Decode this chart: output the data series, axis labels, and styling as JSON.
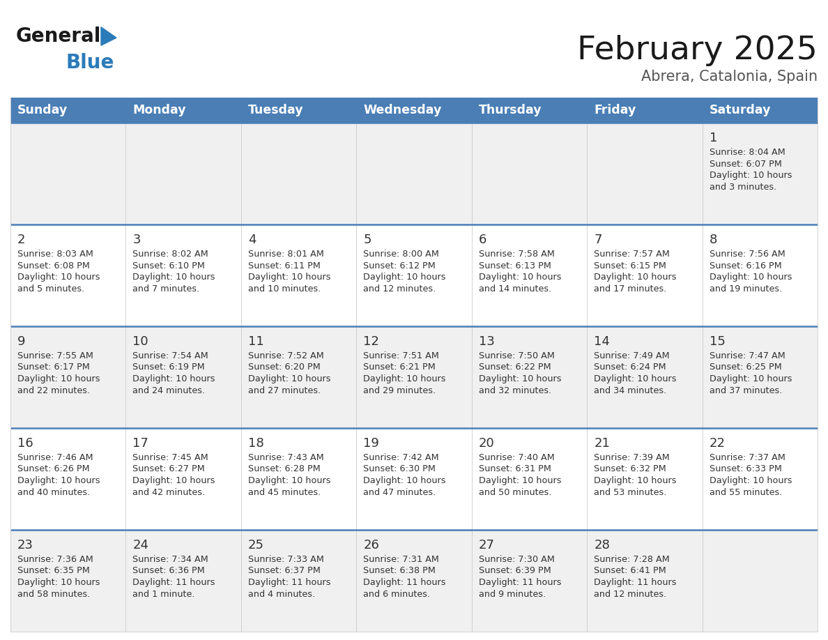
{
  "title": "February 2025",
  "subtitle": "Abrera, Catalonia, Spain",
  "header_bg": "#4a7eb5",
  "header_text": "#ffffff",
  "header_days": [
    "Sunday",
    "Monday",
    "Tuesday",
    "Wednesday",
    "Thursday",
    "Friday",
    "Saturday"
  ],
  "row_bg_odd": "#f0f0f0",
  "row_bg_even": "#ffffff",
  "divider_color": "#4a7eb5",
  "cell_line_color": "#cccccc",
  "text_color": "#333333",
  "title_color": "#1a1a1a",
  "subtitle_color": "#555555",
  "logo_general_color": "#1a1a1a",
  "logo_blue_color": "#2b7bb9",
  "calendar": [
    [
      null,
      null,
      null,
      null,
      null,
      null,
      {
        "day": "1",
        "sunrise": "8:04 AM",
        "sunset": "6:07 PM",
        "daylight_h": "10 hours",
        "daylight_m": "and 3 minutes."
      }
    ],
    [
      {
        "day": "2",
        "sunrise": "8:03 AM",
        "sunset": "6:08 PM",
        "daylight_h": "10 hours",
        "daylight_m": "and 5 minutes."
      },
      {
        "day": "3",
        "sunrise": "8:02 AM",
        "sunset": "6:10 PM",
        "daylight_h": "10 hours",
        "daylight_m": "and 7 minutes."
      },
      {
        "day": "4",
        "sunrise": "8:01 AM",
        "sunset": "6:11 PM",
        "daylight_h": "10 hours",
        "daylight_m": "and 10 minutes."
      },
      {
        "day": "5",
        "sunrise": "8:00 AM",
        "sunset": "6:12 PM",
        "daylight_h": "10 hours",
        "daylight_m": "and 12 minutes."
      },
      {
        "day": "6",
        "sunrise": "7:58 AM",
        "sunset": "6:13 PM",
        "daylight_h": "10 hours",
        "daylight_m": "and 14 minutes."
      },
      {
        "day": "7",
        "sunrise": "7:57 AM",
        "sunset": "6:15 PM",
        "daylight_h": "10 hours",
        "daylight_m": "and 17 minutes."
      },
      {
        "day": "8",
        "sunrise": "7:56 AM",
        "sunset": "6:16 PM",
        "daylight_h": "10 hours",
        "daylight_m": "and 19 minutes."
      }
    ],
    [
      {
        "day": "9",
        "sunrise": "7:55 AM",
        "sunset": "6:17 PM",
        "daylight_h": "10 hours",
        "daylight_m": "and 22 minutes."
      },
      {
        "day": "10",
        "sunrise": "7:54 AM",
        "sunset": "6:19 PM",
        "daylight_h": "10 hours",
        "daylight_m": "and 24 minutes."
      },
      {
        "day": "11",
        "sunrise": "7:52 AM",
        "sunset": "6:20 PM",
        "daylight_h": "10 hours",
        "daylight_m": "and 27 minutes."
      },
      {
        "day": "12",
        "sunrise": "7:51 AM",
        "sunset": "6:21 PM",
        "daylight_h": "10 hours",
        "daylight_m": "and 29 minutes."
      },
      {
        "day": "13",
        "sunrise": "7:50 AM",
        "sunset": "6:22 PM",
        "daylight_h": "10 hours",
        "daylight_m": "and 32 minutes."
      },
      {
        "day": "14",
        "sunrise": "7:49 AM",
        "sunset": "6:24 PM",
        "daylight_h": "10 hours",
        "daylight_m": "and 34 minutes."
      },
      {
        "day": "15",
        "sunrise": "7:47 AM",
        "sunset": "6:25 PM",
        "daylight_h": "10 hours",
        "daylight_m": "and 37 minutes."
      }
    ],
    [
      {
        "day": "16",
        "sunrise": "7:46 AM",
        "sunset": "6:26 PM",
        "daylight_h": "10 hours",
        "daylight_m": "and 40 minutes."
      },
      {
        "day": "17",
        "sunrise": "7:45 AM",
        "sunset": "6:27 PM",
        "daylight_h": "10 hours",
        "daylight_m": "and 42 minutes."
      },
      {
        "day": "18",
        "sunrise": "7:43 AM",
        "sunset": "6:28 PM",
        "daylight_h": "10 hours",
        "daylight_m": "and 45 minutes."
      },
      {
        "day": "19",
        "sunrise": "7:42 AM",
        "sunset": "6:30 PM",
        "daylight_h": "10 hours",
        "daylight_m": "and 47 minutes."
      },
      {
        "day": "20",
        "sunrise": "7:40 AM",
        "sunset": "6:31 PM",
        "daylight_h": "10 hours",
        "daylight_m": "and 50 minutes."
      },
      {
        "day": "21",
        "sunrise": "7:39 AM",
        "sunset": "6:32 PM",
        "daylight_h": "10 hours",
        "daylight_m": "and 53 minutes."
      },
      {
        "day": "22",
        "sunrise": "7:37 AM",
        "sunset": "6:33 PM",
        "daylight_h": "10 hours",
        "daylight_m": "and 55 minutes."
      }
    ],
    [
      {
        "day": "23",
        "sunrise": "7:36 AM",
        "sunset": "6:35 PM",
        "daylight_h": "10 hours",
        "daylight_m": "and 58 minutes."
      },
      {
        "day": "24",
        "sunrise": "7:34 AM",
        "sunset": "6:36 PM",
        "daylight_h": "11 hours",
        "daylight_m": "and 1 minute."
      },
      {
        "day": "25",
        "sunrise": "7:33 AM",
        "sunset": "6:37 PM",
        "daylight_h": "11 hours",
        "daylight_m": "and 4 minutes."
      },
      {
        "day": "26",
        "sunrise": "7:31 AM",
        "sunset": "6:38 PM",
        "daylight_h": "11 hours",
        "daylight_m": "and 6 minutes."
      },
      {
        "day": "27",
        "sunrise": "7:30 AM",
        "sunset": "6:39 PM",
        "daylight_h": "11 hours",
        "daylight_m": "and 9 minutes."
      },
      {
        "day": "28",
        "sunrise": "7:28 AM",
        "sunset": "6:41 PM",
        "daylight_h": "11 hours",
        "daylight_m": "and 12 minutes."
      },
      null
    ]
  ]
}
